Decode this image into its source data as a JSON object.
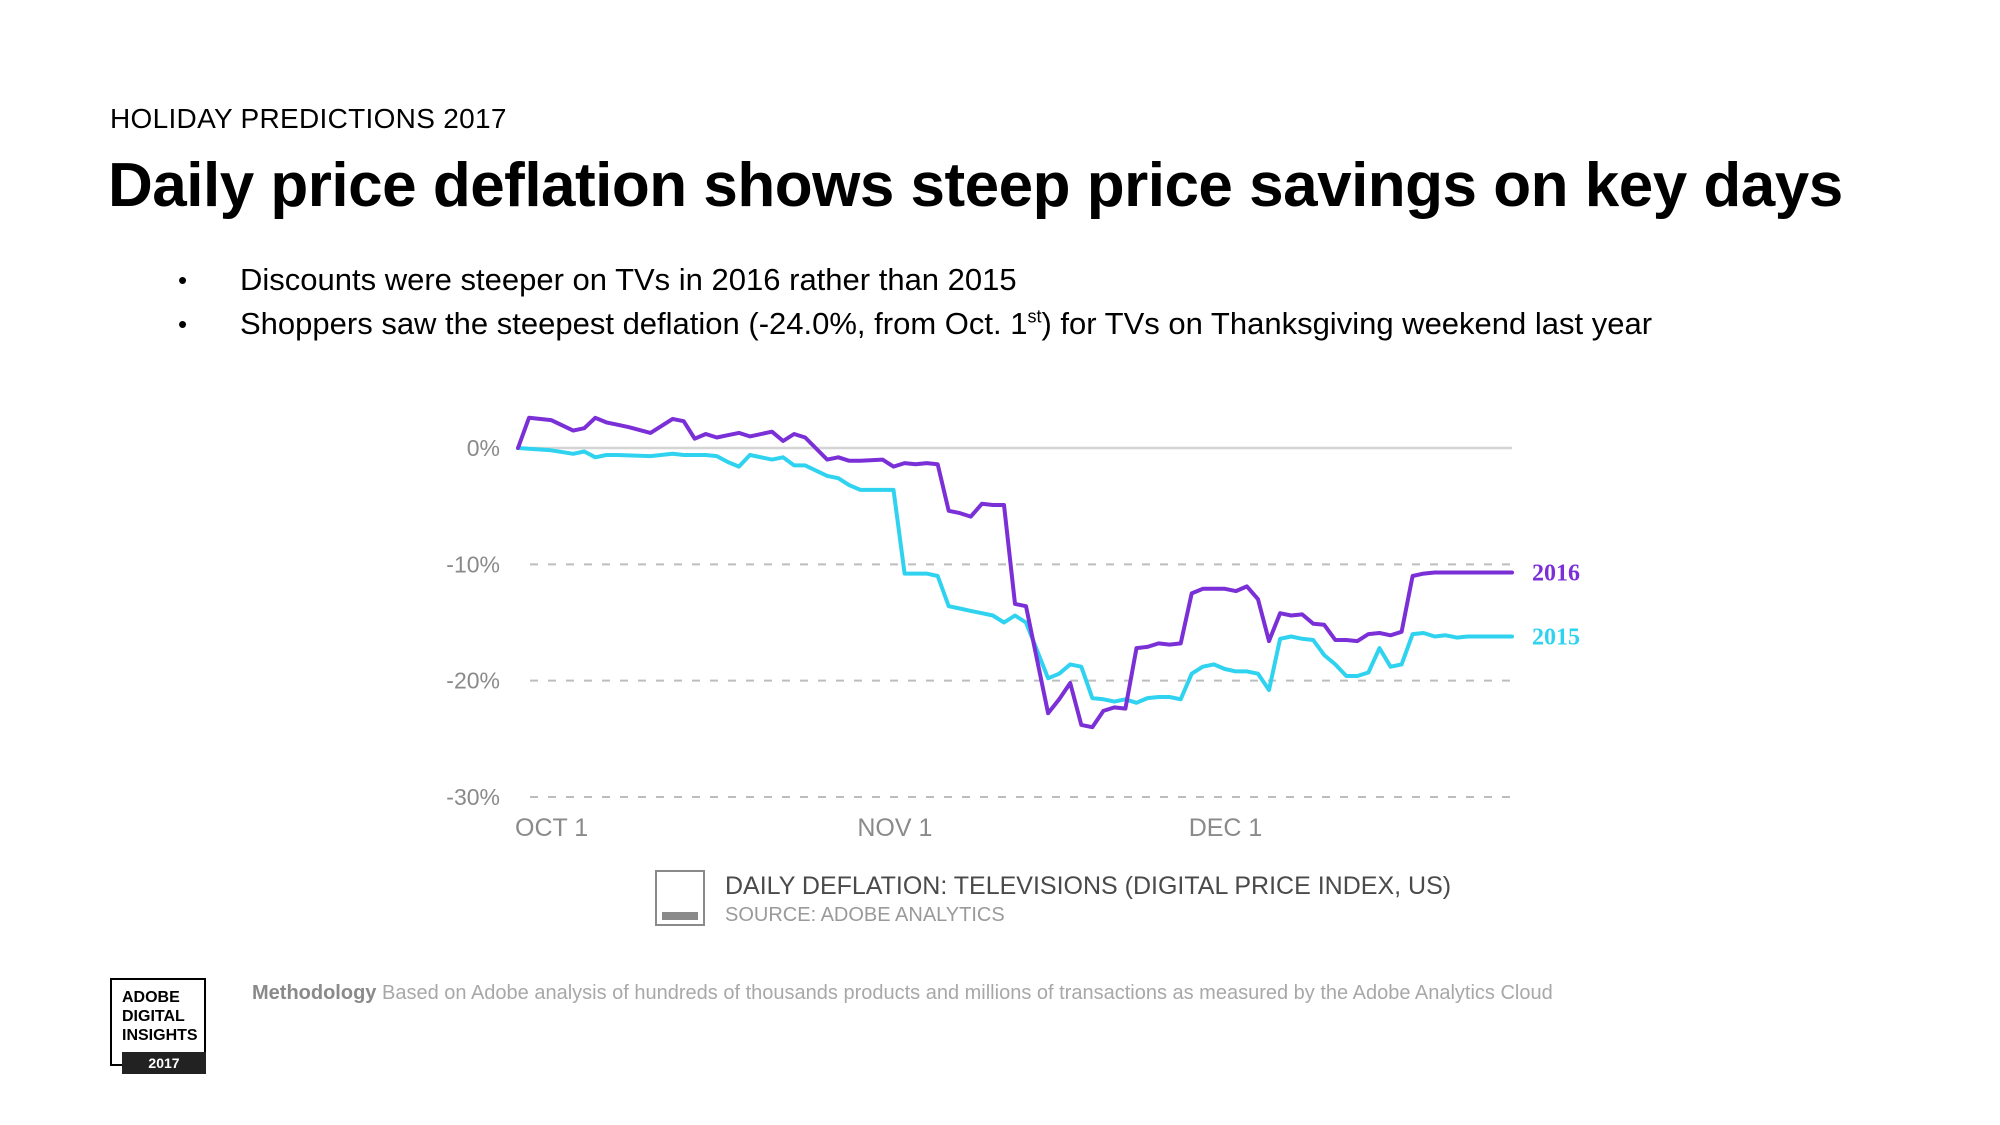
{
  "slide": {
    "kicker": "HOLIDAY PREDICTIONS 2017",
    "title": "Daily price deflation shows steep price savings on key days",
    "bullets": [
      {
        "text": "Discounts were steeper on TVs in 2016 rather than 2015"
      },
      {
        "text_before": "Shoppers saw the steepest deflation (-24.0%, from Oct. 1",
        "sup": "st",
        "text_after": ") for TVs on Thanksgiving weekend last year"
      }
    ],
    "bullet_glyph": "•"
  },
  "caption": {
    "badge_text": "ADOBE DIGITAL INSIGHTS",
    "title": "DAILY DEFLATION: TELEVISIONS (DIGITAL PRICE INDEX, US)",
    "source": "SOURCE: ADOBE ANALYTICS"
  },
  "methodology": {
    "label": "Methodology",
    "text": "Based on Adobe analysis of hundreds of thousands products and millions of transactions as measured by the Adobe Analytics Cloud"
  },
  "logo": {
    "line1": "ADOBE",
    "line2": "DIGITAL",
    "line3": "INSIGHTS",
    "year": "2017"
  },
  "colors": {
    "series_2016": "#7b2fd6",
    "series_2015": "#2fd3ef",
    "axis_text": "#8a8a8a",
    "gridline": "#bdbdbd",
    "zero_line": "#d4d4d4"
  },
  "chart_data": {
    "type": "line",
    "title": "DAILY DEFLATION: TELEVISIONS (DIGITAL PRICE INDEX, US)",
    "xlabel": "",
    "ylabel": "",
    "x_unit": "day index from Oct 1",
    "xlim": [
      0,
      90
    ],
    "ylim": [
      -30,
      3
    ],
    "y_ticks": [
      0,
      -10,
      -20,
      -30
    ],
    "y_tick_labels": [
      "0%",
      "-10%",
      "-20%",
      "-30%"
    ],
    "x_ticks": [
      0,
      31,
      61
    ],
    "x_tick_labels": [
      "OCT 1",
      "NOV 1",
      "DEC 1"
    ],
    "grid": "dashed horizontal at -10%, -20%, -30%; solid at 0%",
    "legend": "inline labels at right end of lines",
    "series": [
      {
        "name": "2016",
        "x": [
          0,
          1,
          3,
          5,
          6,
          7,
          8,
          9,
          10,
          12,
          14,
          15,
          16,
          17,
          18,
          19,
          20,
          21,
          23,
          24,
          25,
          26,
          28,
          29,
          30,
          31,
          33,
          34,
          35,
          36,
          37,
          38,
          39,
          40,
          41,
          42,
          43,
          44,
          45,
          46,
          48,
          49,
          50,
          51,
          52,
          53,
          54,
          55,
          56,
          57,
          58,
          59,
          60,
          61,
          62,
          63,
          64,
          65,
          66,
          67,
          68,
          69,
          70,
          71,
          72,
          73,
          74,
          75,
          76,
          77,
          78,
          79,
          80,
          81,
          82,
          83,
          84,
          85,
          86,
          87,
          88,
          89,
          90
        ],
        "y": [
          0,
          2.6,
          2.4,
          1.5,
          1.7,
          2.6,
          2.2,
          2.0,
          1.8,
          1.3,
          2.5,
          2.3,
          0.8,
          1.2,
          0.9,
          1.1,
          1.3,
          1.0,
          1.4,
          0.6,
          1.2,
          0.9,
          -1.0,
          -0.8,
          -1.1,
          -1.1,
          -1.0,
          -1.6,
          -1.3,
          -1.4,
          -1.3,
          -1.4,
          -5.4,
          -5.6,
          -5.9,
          -4.8,
          -4.9,
          -4.9,
          -13.4,
          -13.6,
          -22.8,
          -21.6,
          -20.2,
          -23.8,
          -24.0,
          -22.6,
          -22.3,
          -22.4,
          -17.2,
          -17.1,
          -16.8,
          -16.9,
          -16.8,
          -12.5,
          -12.1,
          -12.1,
          -12.1,
          -12.3,
          -11.9,
          -13.0,
          -16.6,
          -14.2,
          -14.4,
          -14.3,
          -15.1,
          -15.2,
          -16.5,
          -16.5,
          -16.6,
          -16.0,
          -15.9,
          -16.1,
          -15.8,
          -11.0,
          -10.8,
          -10.7,
          -10.7,
          -10.7,
          -10.7,
          -10.7,
          -10.7,
          -10.7,
          -10.7
        ]
      },
      {
        "name": "2015",
        "x": [
          0,
          3,
          5,
          6,
          7,
          8,
          9,
          12,
          14,
          15,
          16,
          17,
          18,
          19,
          20,
          21,
          23,
          24,
          25,
          26,
          28,
          29,
          30,
          31,
          33,
          34,
          35,
          36,
          37,
          38,
          39,
          40,
          41,
          42,
          43,
          44,
          45,
          46,
          48,
          49,
          50,
          51,
          52,
          53,
          54,
          55,
          56,
          57,
          58,
          59,
          60,
          61,
          62,
          63,
          64,
          65,
          66,
          67,
          68,
          69,
          70,
          71,
          72,
          73,
          74,
          75,
          76,
          77,
          78,
          79,
          80,
          81,
          82,
          83,
          84,
          85,
          86,
          87,
          88,
          89,
          90
        ],
        "y": [
          0,
          -0.2,
          -0.5,
          -0.3,
          -0.8,
          -0.6,
          -0.6,
          -0.7,
          -0.5,
          -0.6,
          -0.6,
          -0.6,
          -0.7,
          -1.2,
          -1.6,
          -0.6,
          -1.0,
          -0.8,
          -1.5,
          -1.5,
          -2.4,
          -2.6,
          -3.2,
          -3.6,
          -3.6,
          -3.6,
          -10.8,
          -10.8,
          -10.8,
          -11.0,
          -13.6,
          -13.8,
          -14.0,
          -14.2,
          -14.4,
          -15.0,
          -14.4,
          -15.0,
          -19.8,
          -19.4,
          -18.6,
          -18.8,
          -21.5,
          -21.6,
          -21.8,
          -21.6,
          -21.9,
          -21.5,
          -21.4,
          -21.4,
          -21.6,
          -19.4,
          -18.8,
          -18.6,
          -19.0,
          -19.2,
          -19.2,
          -19.4,
          -20.8,
          -16.4,
          -16.2,
          -16.4,
          -16.5,
          -17.8,
          -18.6,
          -19.6,
          -19.6,
          -19.3,
          -17.2,
          -18.8,
          -18.6,
          -16.0,
          -15.9,
          -16.2,
          -16.1,
          -16.3,
          -16.2,
          -16.2,
          -16.2,
          -16.2,
          -16.2
        ]
      }
    ]
  }
}
